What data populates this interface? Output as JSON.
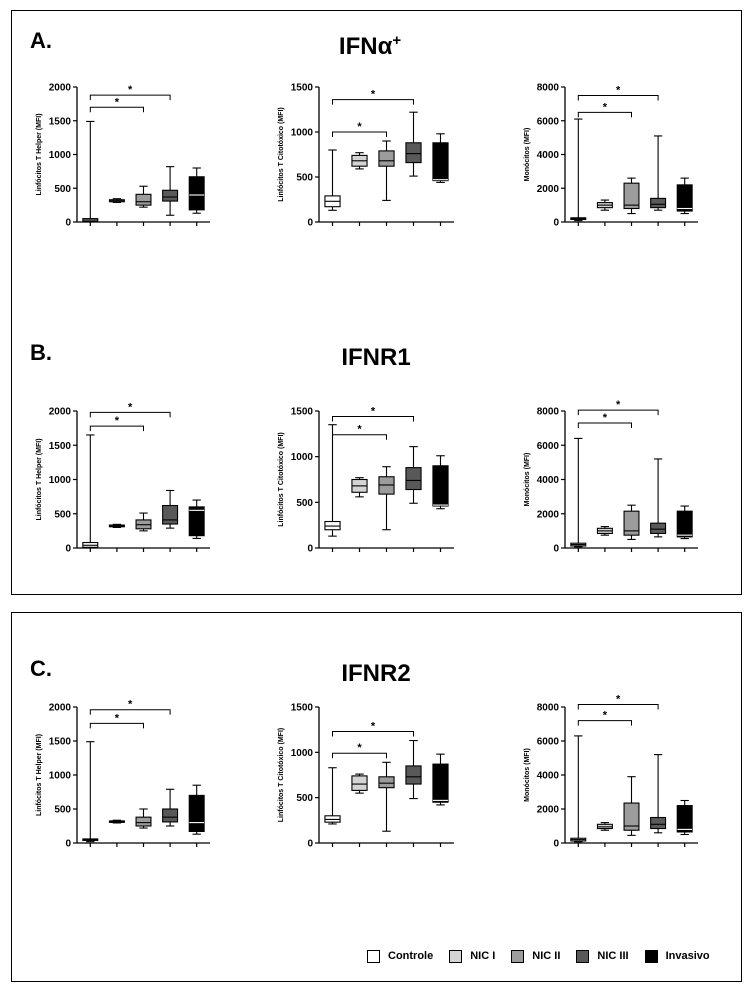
{
  "panels": [
    {
      "letter": "A.",
      "title_main": "IFNα",
      "title_sup": "+"
    },
    {
      "letter": "B.",
      "title_main": "IFNR1",
      "title_sup": ""
    },
    {
      "letter": "C.",
      "title_main": "IFNR2",
      "title_sup": ""
    }
  ],
  "legend": [
    {
      "label": "Controle",
      "color": "#ffffff"
    },
    {
      "label": "NIC I",
      "color": "#d4d4d4"
    },
    {
      "label": "NIC II",
      "color": "#9c9c9c"
    },
    {
      "label": "NIC III",
      "color": "#595959"
    },
    {
      "label": "Invasivo",
      "color": "#000000"
    }
  ],
  "chart_data": [
    {
      "type": "box",
      "panel": "A",
      "ylabel": "Linfócitos T Helper (MFI)",
      "ylim": [
        0,
        2000
      ],
      "yticks": [
        "0",
        "500",
        "1000",
        "1500",
        "2000"
      ],
      "groups": [
        "Controle",
        "NIC I",
        "NIC II",
        "NIC III",
        "Invasivo"
      ],
      "boxes": [
        {
          "min": 5,
          "q1": 10,
          "median": 30,
          "q3": 50,
          "max": 1490
        },
        {
          "min": 290,
          "q1": 300,
          "median": 315,
          "q3": 330,
          "max": 345
        },
        {
          "min": 220,
          "q1": 250,
          "median": 300,
          "q3": 410,
          "max": 530
        },
        {
          "min": 100,
          "q1": 310,
          "median": 370,
          "q3": 470,
          "max": 820
        },
        {
          "min": 130,
          "q1": 180,
          "median": 400,
          "q3": 670,
          "max": 800
        }
      ],
      "significance": [
        {
          "from": 0,
          "to": 2,
          "label": "*",
          "y": 1700
        },
        {
          "from": 0,
          "to": 3,
          "label": "*",
          "y": 1880
        }
      ]
    },
    {
      "type": "box",
      "panel": "A",
      "ylabel": "Linfócitos T Citotóxico (MFI)",
      "ylim": [
        0,
        1500
      ],
      "yticks": [
        "0",
        "500",
        "1000",
        "1500"
      ],
      "groups": [
        "Controle",
        "NIC I",
        "NIC II",
        "NIC III",
        "Invasivo"
      ],
      "boxes": [
        {
          "min": 130,
          "q1": 170,
          "median": 230,
          "q3": 290,
          "max": 800
        },
        {
          "min": 590,
          "q1": 620,
          "median": 680,
          "q3": 740,
          "max": 770
        },
        {
          "min": 240,
          "q1": 620,
          "median": 680,
          "q3": 790,
          "max": 900
        },
        {
          "min": 510,
          "q1": 660,
          "median": 760,
          "q3": 880,
          "max": 1220
        },
        {
          "min": 440,
          "q1": 460,
          "median": 470,
          "q3": 880,
          "max": 980
        }
      ],
      "significance": [
        {
          "from": 0,
          "to": 2,
          "label": "*",
          "y": 1000
        },
        {
          "from": 0,
          "to": 3,
          "label": "*",
          "y": 1360
        }
      ]
    },
    {
      "type": "box",
      "panel": "A",
      "ylabel": "Monócitos (MFI)",
      "ylim": [
        0,
        8000
      ],
      "yticks": [
        "0",
        "2000",
        "4000",
        "6000",
        "8000"
      ],
      "groups": [
        "Controle",
        "NIC I",
        "NIC II",
        "NIC III",
        "Invasivo"
      ],
      "boxes": [
        {
          "min": 80,
          "q1": 150,
          "median": 200,
          "q3": 250,
          "max": 6100
        },
        {
          "min": 700,
          "q1": 850,
          "median": 1000,
          "q3": 1150,
          "max": 1300
        },
        {
          "min": 500,
          "q1": 800,
          "median": 1000,
          "q3": 2300,
          "max": 2600
        },
        {
          "min": 700,
          "q1": 850,
          "median": 1050,
          "q3": 1400,
          "max": 5100
        },
        {
          "min": 500,
          "q1": 650,
          "median": 800,
          "q3": 2200,
          "max": 2600
        }
      ],
      "significance": [
        {
          "from": 0,
          "to": 2,
          "label": "*",
          "y": 6500
        },
        {
          "from": 0,
          "to": 3,
          "label": "*",
          "y": 7500
        }
      ]
    },
    {
      "type": "box",
      "panel": "B",
      "ylabel": "Linfócitos T Helper (MFI)",
      "ylim": [
        0,
        2000
      ],
      "yticks": [
        "0",
        "500",
        "1000",
        "1500",
        "2000"
      ],
      "groups": [
        "Controle",
        "NIC I",
        "NIC II",
        "NIC III",
        "Invasivo"
      ],
      "boxes": [
        {
          "min": 5,
          "q1": 10,
          "median": 40,
          "q3": 80,
          "max": 1650
        },
        {
          "min": 300,
          "q1": 310,
          "median": 320,
          "q3": 335,
          "max": 345
        },
        {
          "min": 250,
          "q1": 280,
          "median": 340,
          "q3": 410,
          "max": 510
        },
        {
          "min": 290,
          "q1": 350,
          "median": 410,
          "q3": 620,
          "max": 840
        },
        {
          "min": 140,
          "q1": 180,
          "median": 550,
          "q3": 600,
          "max": 700
        }
      ],
      "significance": [
        {
          "from": 0,
          "to": 2,
          "label": "*",
          "y": 1780
        },
        {
          "from": 0,
          "to": 3,
          "label": "*",
          "y": 1980
        }
      ]
    },
    {
      "type": "box",
      "panel": "B",
      "ylabel": "Linfócitos T Citotóxico (MFI)",
      "ylim": [
        0,
        1500
      ],
      "yticks": [
        "0",
        "500",
        "1000",
        "1500"
      ],
      "groups": [
        "Controle",
        "NIC I",
        "NIC II",
        "NIC III",
        "Invasivo"
      ],
      "boxes": [
        {
          "min": 130,
          "q1": 200,
          "median": 240,
          "q3": 290,
          "max": 1350
        },
        {
          "min": 560,
          "q1": 610,
          "median": 680,
          "q3": 750,
          "max": 770
        },
        {
          "min": 200,
          "q1": 590,
          "median": 690,
          "q3": 780,
          "max": 890
        },
        {
          "min": 490,
          "q1": 640,
          "median": 740,
          "q3": 880,
          "max": 1110
        },
        {
          "min": 430,
          "q1": 460,
          "median": 470,
          "q3": 900,
          "max": 1010
        }
      ],
      "significance": [
        {
          "from": 0,
          "to": 2,
          "label": "*",
          "y": 1240
        },
        {
          "from": 0,
          "to": 3,
          "label": "*",
          "y": 1440
        }
      ]
    },
    {
      "type": "box",
      "panel": "B",
      "ylabel": "Monócitos (MFI)",
      "ylim": [
        0,
        8000
      ],
      "yticks": [
        "0",
        "2000",
        "4000",
        "6000",
        "8000"
      ],
      "groups": [
        "Controle",
        "NIC I",
        "NIC II",
        "NIC III",
        "Invasivo"
      ],
      "boxes": [
        {
          "min": 70,
          "q1": 120,
          "median": 200,
          "q3": 280,
          "max": 6400
        },
        {
          "min": 750,
          "q1": 850,
          "median": 1000,
          "q3": 1150,
          "max": 1250
        },
        {
          "min": 500,
          "q1": 750,
          "median": 1000,
          "q3": 2150,
          "max": 2500
        },
        {
          "min": 650,
          "q1": 850,
          "median": 1100,
          "q3": 1450,
          "max": 5200
        },
        {
          "min": 550,
          "q1": 650,
          "median": 750,
          "q3": 2150,
          "max": 2450
        }
      ],
      "significance": [
        {
          "from": 0,
          "to": 2,
          "label": "*",
          "y": 7300
        },
        {
          "from": 0,
          "to": 3,
          "label": "*",
          "y": 8050
        }
      ]
    },
    {
      "type": "box",
      "panel": "C",
      "ylabel": "Linfócitos T Helper (MFI)",
      "ylim": [
        0,
        2000
      ],
      "yticks": [
        "0",
        "500",
        "1000",
        "1500",
        "2000"
      ],
      "groups": [
        "Controle",
        "NIC I",
        "NIC II",
        "NIC III",
        "Invasivo"
      ],
      "boxes": [
        {
          "min": 20,
          "q1": 40,
          "median": 50,
          "q3": 60,
          "max": 1490
        },
        {
          "min": 295,
          "q1": 305,
          "median": 315,
          "q3": 325,
          "max": 335
        },
        {
          "min": 220,
          "q1": 250,
          "median": 300,
          "q3": 380,
          "max": 500
        },
        {
          "min": 250,
          "q1": 310,
          "median": 380,
          "q3": 500,
          "max": 790
        },
        {
          "min": 130,
          "q1": 170,
          "median": 300,
          "q3": 700,
          "max": 850
        }
      ],
      "significance": [
        {
          "from": 0,
          "to": 2,
          "label": "*",
          "y": 1760
        },
        {
          "from": 0,
          "to": 3,
          "label": "*",
          "y": 1960
        }
      ]
    },
    {
      "type": "box",
      "panel": "C",
      "ylabel": "Linfócitos T Citotóxico (MFI)",
      "ylim": [
        0,
        1500
      ],
      "yticks": [
        "0",
        "500",
        "1000",
        "1500"
      ],
      "groups": [
        "Controle",
        "NIC I",
        "NIC II",
        "NIC III",
        "Invasivo"
      ],
      "boxes": [
        {
          "min": 210,
          "q1": 230,
          "median": 260,
          "q3": 300,
          "max": 830
        },
        {
          "min": 550,
          "q1": 580,
          "median": 650,
          "q3": 740,
          "max": 760
        },
        {
          "min": 130,
          "q1": 610,
          "median": 660,
          "q3": 730,
          "max": 890
        },
        {
          "min": 490,
          "q1": 650,
          "median": 730,
          "q3": 850,
          "max": 1130
        },
        {
          "min": 420,
          "q1": 450,
          "median": 470,
          "q3": 870,
          "max": 980
        }
      ],
      "significance": [
        {
          "from": 0,
          "to": 2,
          "label": "*",
          "y": 990
        },
        {
          "from": 0,
          "to": 3,
          "label": "*",
          "y": 1230
        }
      ]
    },
    {
      "type": "box",
      "panel": "C",
      "ylabel": "Monócitos (MFI)",
      "ylim": [
        0,
        8000
      ],
      "yticks": [
        "0",
        "2000",
        "4000",
        "6000",
        "8000"
      ],
      "groups": [
        "Controle",
        "NIC I",
        "NIC II",
        "NIC III",
        "Invasivo"
      ],
      "boxes": [
        {
          "min": 70,
          "q1": 120,
          "median": 200,
          "q3": 280,
          "max": 6300
        },
        {
          "min": 750,
          "q1": 850,
          "median": 950,
          "q3": 1100,
          "max": 1200
        },
        {
          "min": 450,
          "q1": 750,
          "median": 1000,
          "q3": 2350,
          "max": 3900
        },
        {
          "min": 600,
          "q1": 850,
          "median": 1100,
          "q3": 1500,
          "max": 5200
        },
        {
          "min": 500,
          "q1": 650,
          "median": 800,
          "q3": 2200,
          "max": 2500
        }
      ],
      "significance": [
        {
          "from": 0,
          "to": 2,
          "label": "*",
          "y": 7200
        },
        {
          "from": 0,
          "to": 3,
          "label": "*",
          "y": 8150
        }
      ]
    }
  ]
}
